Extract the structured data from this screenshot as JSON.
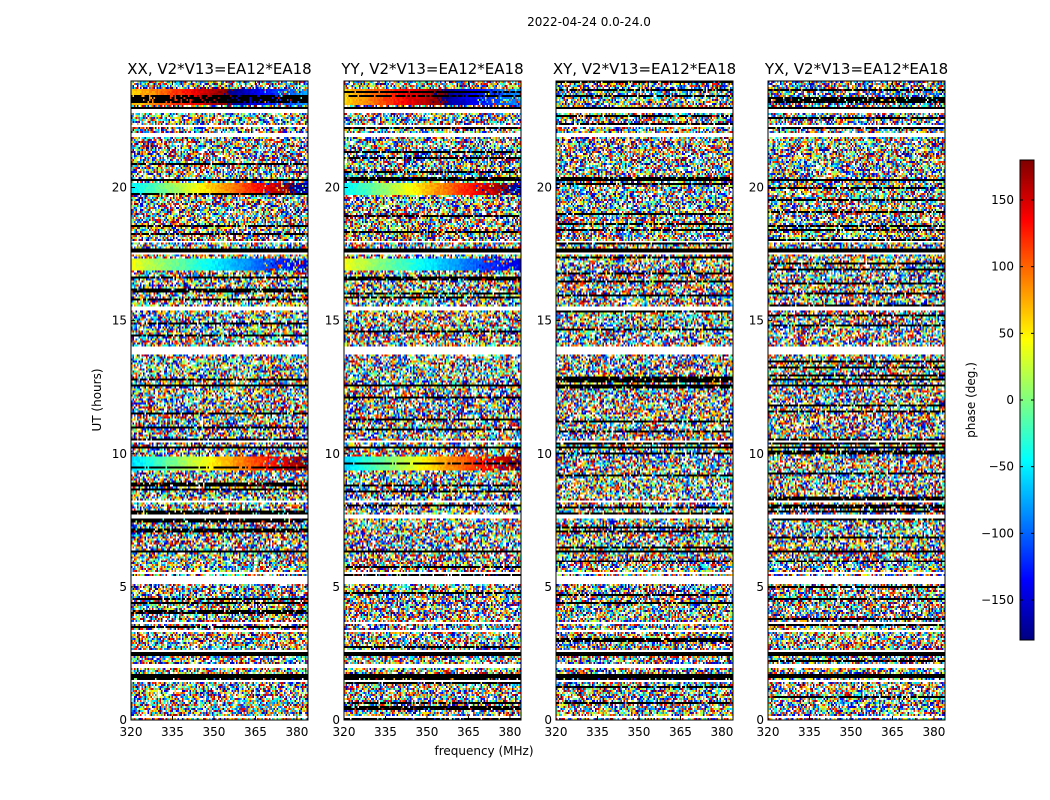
{
  "figure": {
    "suptitle": "2022-04-24 0.0-24.0"
  },
  "chart_data": {
    "type": "heatmap",
    "panels": [
      {
        "id": "xx",
        "title": "XX, V2*V13=EA12*EA18",
        "coherent": true,
        "seed": 11
      },
      {
        "id": "yy",
        "title": "YY, V2*V13=EA12*EA18",
        "coherent": true,
        "seed": 23
      },
      {
        "id": "xy",
        "title": "XY, V2*V13=EA12*EA18",
        "coherent": false,
        "seed": 37
      },
      {
        "id": "yx",
        "title": "YX, V2*V13=EA12*EA18",
        "coherent": false,
        "seed": 53
      }
    ],
    "xlabel": "frequency (MHz)",
    "ylabel": "UT (hours)",
    "xlim": [
      320,
      384
    ],
    "ylim": [
      0,
      24
    ],
    "xticks": [
      320,
      335,
      350,
      365,
      380
    ],
    "yticks": [
      0,
      5,
      10,
      15,
      20
    ],
    "colorbar": {
      "label": "phase (deg.)",
      "range": [
        -180,
        180
      ],
      "ticks": [
        150,
        100,
        50,
        0,
        -50,
        -100,
        -150
      ],
      "colormap": "jet"
    },
    "blank_hours": [
      [
        0.05,
        0.12
      ],
      [
        1.45,
        1.52
      ],
      [
        1.98,
        2.08
      ],
      [
        2.55,
        2.65
      ],
      [
        3.3,
        3.38
      ],
      [
        3.6,
        3.68
      ],
      [
        5.1,
        5.38
      ],
      [
        5.5,
        5.56
      ],
      [
        7.6,
        7.72
      ],
      [
        8.2,
        8.28
      ],
      [
        8.6,
        8.66
      ],
      [
        10.4,
        10.5
      ],
      [
        13.75,
        14.05
      ],
      [
        15.35,
        15.5
      ],
      [
        17.45,
        17.55
      ],
      [
        17.9,
        18.0
      ],
      [
        21.9,
        22.05
      ],
      [
        22.25,
        22.32
      ],
      [
        22.8,
        22.95
      ]
    ],
    "flagged_hours": [
      [
        1.55,
        1.7
      ],
      [
        2.42,
        2.52
      ],
      [
        6.3,
        6.38
      ],
      [
        10.18,
        10.3
      ],
      [
        12.5,
        12.58
      ],
      [
        17.55,
        17.7
      ],
      [
        20.25,
        20.35
      ],
      [
        22.95,
        23.05
      ]
    ],
    "coherent_bands": [
      {
        "hours": [
          9.35,
          9.9
        ],
        "phase_start": -60,
        "phase_end": 180
      },
      {
        "hours": [
          19.7,
          20.2
        ],
        "phase_start": -50,
        "phase_end": 200
      },
      {
        "hours": [
          16.9,
          17.35
        ],
        "phase_start": 40,
        "phase_end": -150
      },
      {
        "hours": [
          23.1,
          23.7
        ],
        "phase_start": 60,
        "phase_end": 280
      }
    ]
  }
}
